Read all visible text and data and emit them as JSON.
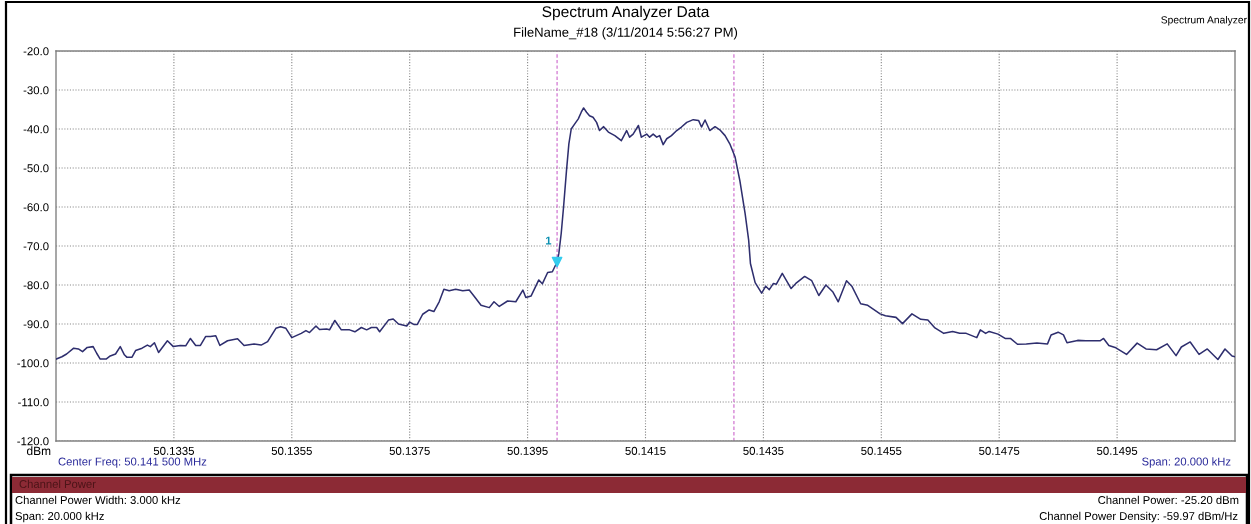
{
  "chart_data": {
    "type": "line",
    "title": "Spectrum Analyzer Data",
    "subtitle": "FileName_#18 (3/11/2014 5:56:27 PM)",
    "ylabel": "dBm",
    "xlim": [
      50.1315,
      50.1515
    ],
    "xticks": [
      50.1335,
      50.1355,
      50.1375,
      50.1395,
      50.1415,
      50.1435,
      50.1455,
      50.1475,
      50.1495
    ],
    "ylim": [
      -120,
      -20
    ],
    "yticks": [
      {
        "value": -20,
        "label": "-20.0"
      },
      {
        "value": -30,
        "label": "-30.0"
      },
      {
        "value": -40,
        "label": "-40.0"
      },
      {
        "value": -50,
        "label": "-50.0"
      },
      {
        "value": -60,
        "label": "-60.0"
      },
      {
        "value": -70,
        "label": "-70.0"
      },
      {
        "value": -80,
        "label": "-80.0"
      },
      {
        "value": -90,
        "label": "-90.0"
      },
      {
        "value": -100,
        "label": "-100.0"
      },
      {
        "value": -110,
        "label": "-110.0"
      },
      {
        "value": -120,
        "label": "-120.0"
      }
    ],
    "grid": true,
    "ref_lines": [
      {
        "axis": "x",
        "value": 50.14,
        "color": "#cc66cc",
        "line_style": "dashed"
      },
      {
        "axis": "x",
        "value": 50.143,
        "color": "#cc66cc",
        "line_style": "dashed"
      }
    ],
    "series": [
      {
        "color": "#2e2e6e",
        "marker": "none",
        "line_style": "solid",
        "x": [
          50.1315,
          50.1316,
          50.13168,
          50.1318,
          50.13188,
          50.13195,
          50.13203,
          50.13213,
          50.13219,
          50.13225,
          50.13235,
          50.13242,
          50.13251,
          50.13259,
          50.13266,
          50.1327,
          50.13279,
          50.13285,
          50.13296,
          50.13305,
          50.1331,
          50.13317,
          50.13324,
          50.13339,
          50.13349,
          50.13361,
          50.1337,
          50.13378,
          50.13387,
          50.13395,
          50.13404,
          50.13412,
          50.13421,
          50.13428,
          50.13441,
          50.13458,
          50.13469,
          50.13486,
          50.13498,
          50.13509,
          50.13523,
          50.13531,
          50.1354,
          50.1355,
          50.13566,
          50.13574,
          50.1358,
          50.13591,
          50.13597,
          50.13609,
          50.13614,
          50.13623,
          50.13634,
          50.13648,
          50.13657,
          50.13668,
          50.13677,
          50.13685,
          50.13694,
          50.13699,
          50.13714,
          50.13722,
          50.13731,
          50.13745,
          50.1375,
          50.13757,
          50.13763,
          50.13772,
          50.13783,
          50.13791,
          50.138,
          50.13808,
          50.13817,
          50.13828,
          50.1384,
          50.13851,
          50.13859,
          50.13871,
          50.13885,
          50.13893,
          50.13902,
          50.13916,
          50.1393,
          50.13942,
          50.13947,
          50.13956,
          50.13969,
          50.13975,
          50.13984,
          50.13992,
          50.14,
          50.14003,
          50.14007,
          50.14011,
          50.14016,
          50.1402,
          50.14024,
          50.1403,
          50.14036,
          50.14041,
          50.14045,
          50.1405,
          50.14055,
          50.14061,
          50.14067,
          50.14072,
          50.14079,
          50.14087,
          50.14098,
          50.14109,
          50.14118,
          50.14123,
          50.14129,
          50.14138,
          50.14143,
          50.14152,
          50.14157,
          50.14163,
          50.14169,
          50.14174,
          50.1418,
          50.14186,
          50.14194,
          50.14203,
          50.14211,
          50.1422,
          50.14231,
          50.1424,
          50.14245,
          50.14251,
          50.14259,
          50.14268,
          50.14276,
          50.14285,
          50.14293,
          50.14302,
          50.1431,
          50.14319,
          50.14325,
          50.14328,
          50.14336,
          50.14347,
          50.14354,
          50.1436,
          50.14367,
          50.14372,
          50.14382,
          50.14397,
          50.14405,
          50.1442,
          50.14432,
          50.14444,
          50.14456,
          50.14468,
          50.14477,
          50.14491,
          50.145,
          50.14515,
          50.14527,
          50.14548,
          50.14557,
          50.14575,
          50.14586,
          50.14602,
          50.14617,
          50.14629,
          50.14641,
          50.14656,
          50.14671,
          50.14683,
          50.14694,
          50.14712,
          50.14718,
          50.14727,
          50.14733,
          50.14748,
          50.1476,
          50.14769,
          50.14781,
          50.14796,
          50.14814,
          50.14832,
          50.14838,
          50.1485,
          50.14859,
          50.14865,
          50.14883,
          50.14897,
          50.14921,
          50.14927,
          50.14936,
          50.14948,
          50.14966,
          50.14984,
          50.14999,
          50.15017,
          50.15035,
          50.1505,
          50.15059,
          50.15074,
          50.15089,
          50.15103,
          50.15121,
          50.15133,
          50.15145,
          50.1515
        ],
        "values": [
          -99.0,
          -98.4,
          -97.7,
          -96.2,
          -96.4,
          -97.1,
          -96.0,
          -95.8,
          -97.5,
          -99.0,
          -99.0,
          -98.2,
          -97.7,
          -95.8,
          -97.9,
          -98.5,
          -98.5,
          -96.8,
          -96.2,
          -95.4,
          -95.8,
          -94.8,
          -97.3,
          -94.3,
          -95.8,
          -95.5,
          -95.6,
          -93.7,
          -95.5,
          -95.5,
          -93.2,
          -93.2,
          -93.0,
          -95.5,
          -94.3,
          -93.8,
          -95.5,
          -95.1,
          -95.4,
          -94.5,
          -91.1,
          -90.7,
          -91.1,
          -93.5,
          -92.4,
          -91.7,
          -92.2,
          -90.5,
          -91.4,
          -91.3,
          -91.5,
          -89.1,
          -91.5,
          -91.5,
          -92.0,
          -90.9,
          -91.5,
          -90.9,
          -90.9,
          -92.0,
          -89.0,
          -88.7,
          -90.0,
          -90.5,
          -89.5,
          -90.1,
          -90.1,
          -87.5,
          -86.4,
          -86.8,
          -84.3,
          -81.1,
          -81.5,
          -81.1,
          -81.5,
          -81.3,
          -82.8,
          -85.2,
          -85.8,
          -84.3,
          -85.5,
          -84.1,
          -84.3,
          -81.3,
          -83.2,
          -82.8,
          -78.7,
          -79.7,
          -76.8,
          -76.6,
          -74.1,
          -71.9,
          -66.8,
          -60.0,
          -50.6,
          -43.8,
          -40.0,
          -38.7,
          -37.4,
          -35.7,
          -34.6,
          -35.7,
          -36.6,
          -37.0,
          -38.3,
          -40.4,
          -39.4,
          -40.8,
          -41.7,
          -43.0,
          -40.4,
          -42.1,
          -41.3,
          -39.1,
          -42.1,
          -41.3,
          -42.1,
          -41.3,
          -42.1,
          -41.7,
          -44.0,
          -42.5,
          -41.7,
          -40.4,
          -39.5,
          -38.3,
          -37.6,
          -37.8,
          -39.5,
          -37.7,
          -40.4,
          -39.4,
          -40.2,
          -41.7,
          -43.8,
          -47.2,
          -53.2,
          -61.7,
          -68.5,
          -74.5,
          -79.4,
          -82.1,
          -80.3,
          -81.2,
          -79.6,
          -79.8,
          -77.0,
          -80.9,
          -79.6,
          -77.8,
          -78.9,
          -82.7,
          -80.0,
          -81.8,
          -84.3,
          -78.9,
          -80.3,
          -84.8,
          -85.2,
          -87.4,
          -87.9,
          -88.3,
          -89.9,
          -87.4,
          -88.8,
          -89.0,
          -91.0,
          -92.4,
          -91.9,
          -92.4,
          -92.4,
          -93.5,
          -91.5,
          -92.4,
          -91.9,
          -92.6,
          -93.7,
          -93.7,
          -95.2,
          -95.1,
          -94.9,
          -95.1,
          -92.8,
          -92.1,
          -92.8,
          -94.8,
          -94.2,
          -94.3,
          -94.3,
          -93.7,
          -95.5,
          -96.1,
          -97.8,
          -94.9,
          -96.4,
          -96.6,
          -95.1,
          -98.1,
          -95.9,
          -94.6,
          -97.8,
          -96.4,
          -99.1,
          -96.4,
          -98.2,
          -98.4
        ]
      },
      {
        "type": "scatter",
        "color": "#33ccee",
        "marker": "triangle",
        "x": [
          50.14
        ],
        "values": [
          -74.1
        ]
      }
    ],
    "annotations": [
      "Spectrum Analyzer",
      "Center Freq: 50.141 500 MHz",
      "Span: 20.000 kHz",
      "Channel Power",
      "Channel Power Width: 3.000 kHz",
      "Span: 20.000 kHz",
      "Channel Power: -25.20 dBm",
      "Channel Power Density: -59.97 dBm/Hz",
      {
        "text": "1",
        "x": 50.14,
        "y": -74.1
      }
    ]
  }
}
